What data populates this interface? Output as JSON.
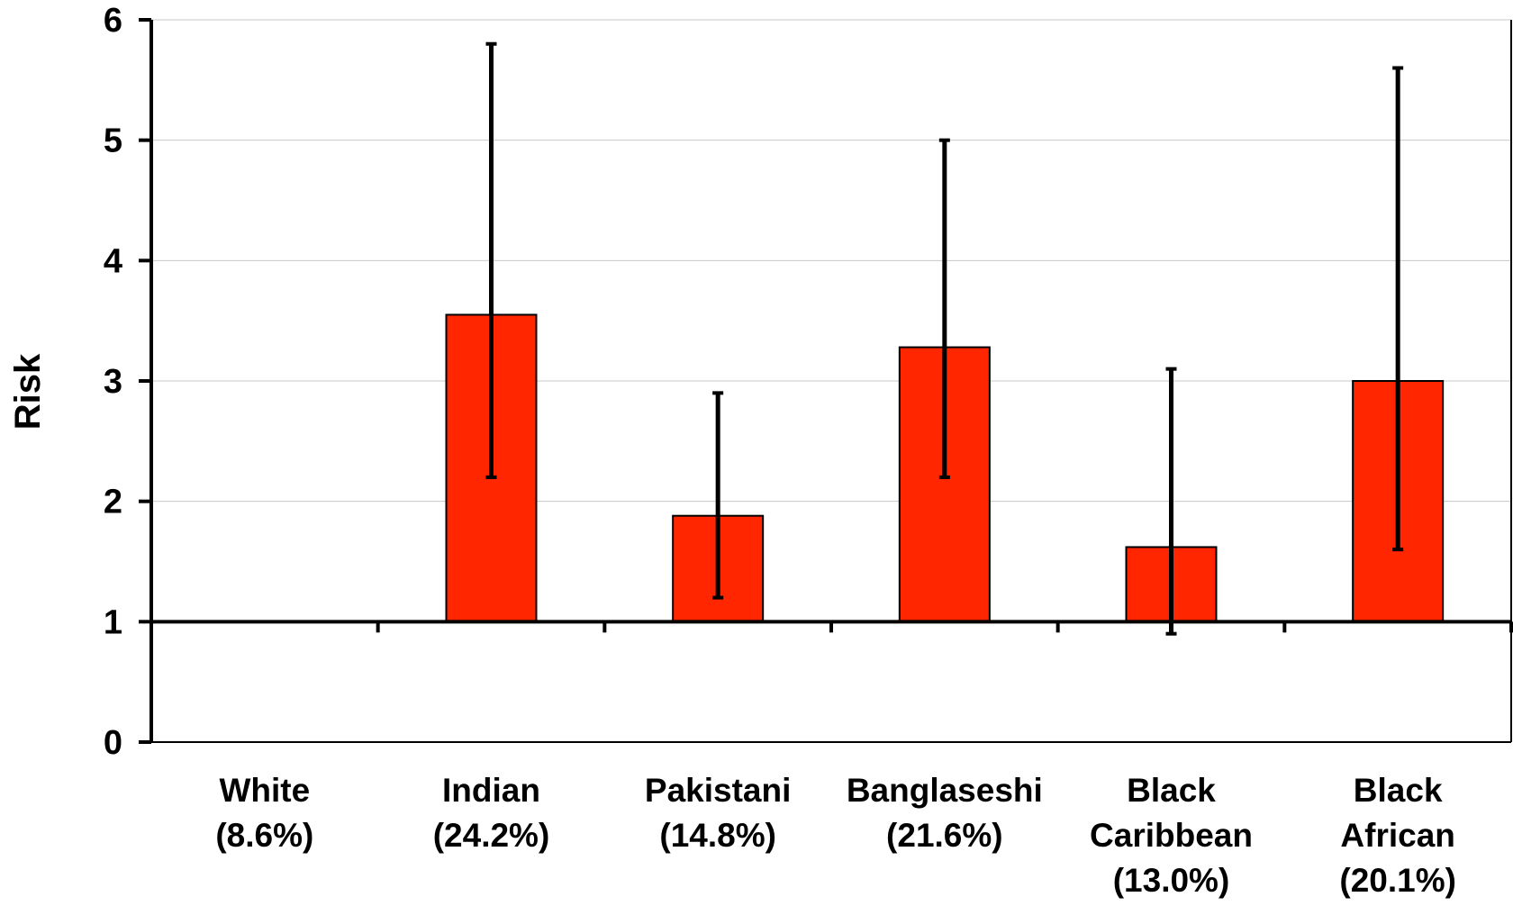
{
  "chart_data": {
    "type": "bar",
    "title": "",
    "xlabel": "",
    "ylabel": "Risk",
    "ylim": [
      0,
      6
    ],
    "y_ticks": [
      0,
      1,
      2,
      3,
      4,
      5,
      6
    ],
    "baseline": 1,
    "grid": true,
    "legend": "none",
    "categories": [
      [
        "White",
        "(8.6%)"
      ],
      [
        "Indian",
        "(24.2%)"
      ],
      [
        "Pakistani",
        "(14.8%)"
      ],
      [
        "Banglaseshi",
        "(21.6%)"
      ],
      [
        "Black",
        "Caribbean",
        "(13.0%)"
      ],
      [
        "Black",
        "African",
        "(20.1%)"
      ]
    ],
    "series": [
      {
        "values": [
          1,
          3.55,
          1.88,
          3.28,
          1.62,
          3.0
        ],
        "error_low": [
          null,
          2.2,
          1.2,
          2.2,
          0.9,
          1.6
        ],
        "error_high": [
          null,
          5.8,
          2.9,
          5.0,
          3.1,
          5.6
        ]
      }
    ],
    "colors": {
      "bar_fill": "#ff2600",
      "bar_stroke": "#000000",
      "error_bar": "#000000",
      "axis": "#000000",
      "grid": "#c8c8c8"
    }
  }
}
